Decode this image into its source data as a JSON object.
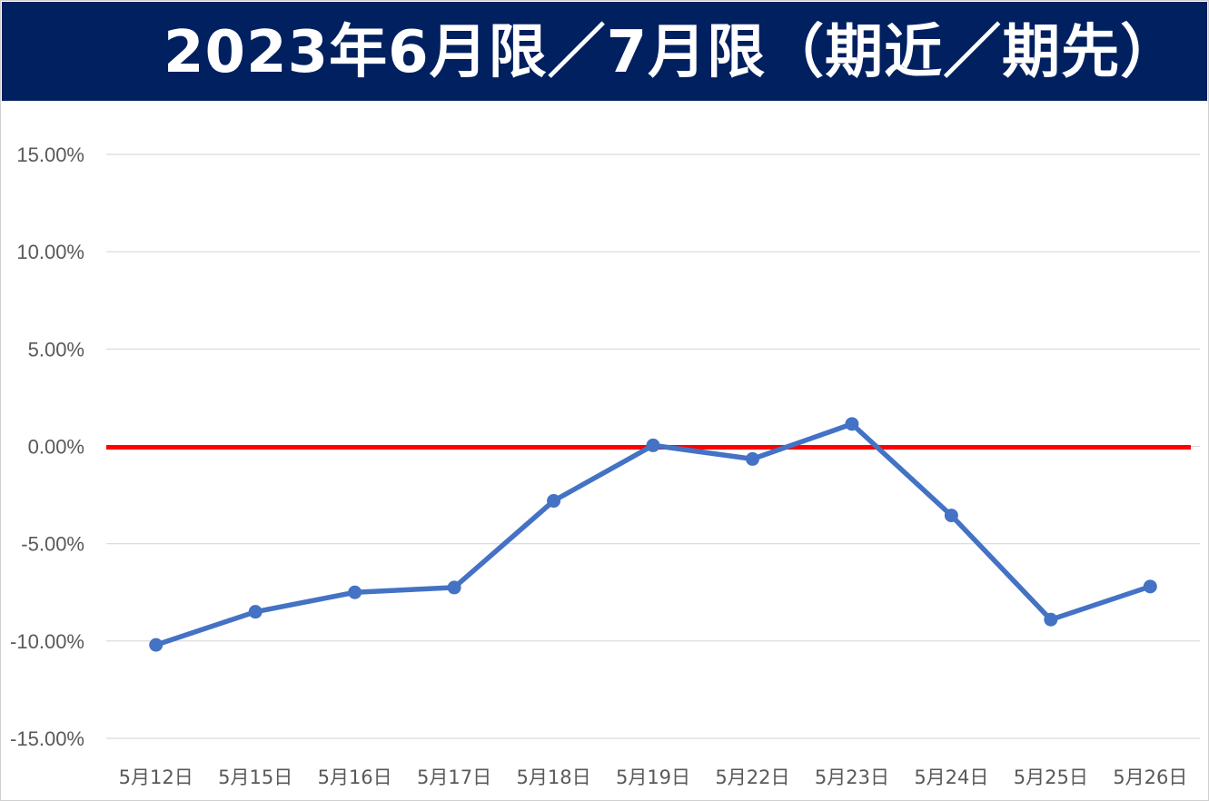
{
  "chart_data": {
    "type": "line",
    "title": "2023年6月限／7月限（期近／期先）",
    "xlabel": "",
    "ylabel": "",
    "categories": [
      "5月12日",
      "5月15日",
      "5月16日",
      "5月17日",
      "5月18日",
      "5月19日",
      "5月22日",
      "5月23日",
      "5月24日",
      "5月25日",
      "5月26日"
    ],
    "series": [
      {
        "values": [
          -10.2,
          -8.5,
          -7.5,
          -7.25,
          -2.8,
          0.05,
          -0.65,
          1.15,
          -3.55,
          -8.9,
          -7.2
        ],
        "color": "#4472c4",
        "marker": "circle"
      }
    ],
    "reference_line": {
      "y": 0,
      "color": "#ff0000"
    },
    "ylim": [
      -15,
      15
    ],
    "yticks": [
      15,
      10,
      5,
      0,
      -5,
      -10,
      -15
    ],
    "ytick_labels": [
      "15.00%",
      "10.00%",
      "5.00%",
      "0.00%",
      "-5.00%",
      "-10.00%",
      "-15.00%"
    ],
    "grid": "horizontal",
    "legend": "none",
    "gridline_color": "#d9d9d9",
    "title_background": "#002060"
  }
}
